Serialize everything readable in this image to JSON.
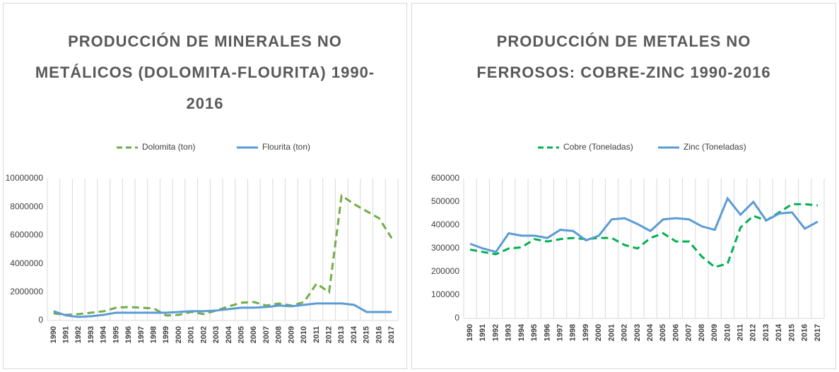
{
  "chart_data": [
    {
      "type": "line",
      "title": "PRODUCCIÓN DE MINERALES NO METÁLICOS (DOLOMITA-FLOURITA) 1990-2016",
      "categories": [
        "1990",
        "1991",
        "1992",
        "1993",
        "1994",
        "1995",
        "1996",
        "1997",
        "1998",
        "1999",
        "2000",
        "2001",
        "2002",
        "2003",
        "2004",
        "2005",
        "2006",
        "2007",
        "2008",
        "2009",
        "2010",
        "2011",
        "2012",
        "2013",
        "2014",
        "2015",
        "2016",
        "2017"
      ],
      "series": [
        {
          "name": "Dolomita (ton)",
          "color": "#70ad47",
          "dashed": true,
          "values": [
            500000,
            400000,
            450000,
            550000,
            650000,
            900000,
            950000,
            900000,
            850000,
            350000,
            400000,
            600000,
            450000,
            700000,
            1000000,
            1250000,
            1300000,
            1050000,
            1200000,
            1050000,
            1300000,
            2600000,
            2000000,
            8800000,
            8200000,
            7700000,
            7200000,
            5800000
          ]
        },
        {
          "name": "Flourita (ton)",
          "color": "#5b9bd5",
          "dashed": false,
          "values": [
            650000,
            350000,
            250000,
            300000,
            400000,
            550000,
            550000,
            550000,
            550000,
            550000,
            600000,
            650000,
            650000,
            700000,
            800000,
            900000,
            900000,
            950000,
            1050000,
            1000000,
            1100000,
            1200000,
            1200000,
            1200000,
            1100000,
            600000,
            600000,
            600000
          ]
        }
      ],
      "ylim": [
        0,
        10000000
      ],
      "yticks": [
        0,
        2000000,
        4000000,
        6000000,
        8000000,
        10000000
      ],
      "grid": "vertical",
      "legend": "top"
    },
    {
      "type": "line",
      "title": "PRODUCCIÓN DE METALES NO FERROSOS: COBRE-ZINC 1990-2016",
      "categories": [
        "1990",
        "1991",
        "1992",
        "1993",
        "1994",
        "1995",
        "1996",
        "1997",
        "1998",
        "1999",
        "2000",
        "2001",
        "2002",
        "2003",
        "2004",
        "2005",
        "2006",
        "2007",
        "2008",
        "2009",
        "2010",
        "2011",
        "2012",
        "2013",
        "2014",
        "2015",
        "2016",
        "2017"
      ],
      "series": [
        {
          "name": "Cobre (Toneladas)",
          "color": "#00b050",
          "dashed": true,
          "values": [
            295000,
            285000,
            275000,
            300000,
            305000,
            340000,
            330000,
            340000,
            345000,
            340000,
            345000,
            345000,
            315000,
            300000,
            345000,
            365000,
            330000,
            330000,
            265000,
            220000,
            235000,
            390000,
            440000,
            420000,
            455000,
            490000,
            490000,
            485000
          ]
        },
        {
          "name": "Zinc (Toneladas)",
          "color": "#5b9bd5",
          "dashed": false,
          "values": [
            320000,
            300000,
            285000,
            365000,
            355000,
            355000,
            345000,
            380000,
            375000,
            335000,
            355000,
            425000,
            430000,
            405000,
            375000,
            425000,
            430000,
            425000,
            395000,
            380000,
            515000,
            445000,
            500000,
            420000,
            450000,
            455000,
            385000,
            415000
          ]
        }
      ],
      "ylim": [
        0,
        600000
      ],
      "yticks": [
        0,
        100000,
        200000,
        300000,
        400000,
        500000,
        600000
      ],
      "grid": "vertical",
      "legend": "top"
    }
  ]
}
